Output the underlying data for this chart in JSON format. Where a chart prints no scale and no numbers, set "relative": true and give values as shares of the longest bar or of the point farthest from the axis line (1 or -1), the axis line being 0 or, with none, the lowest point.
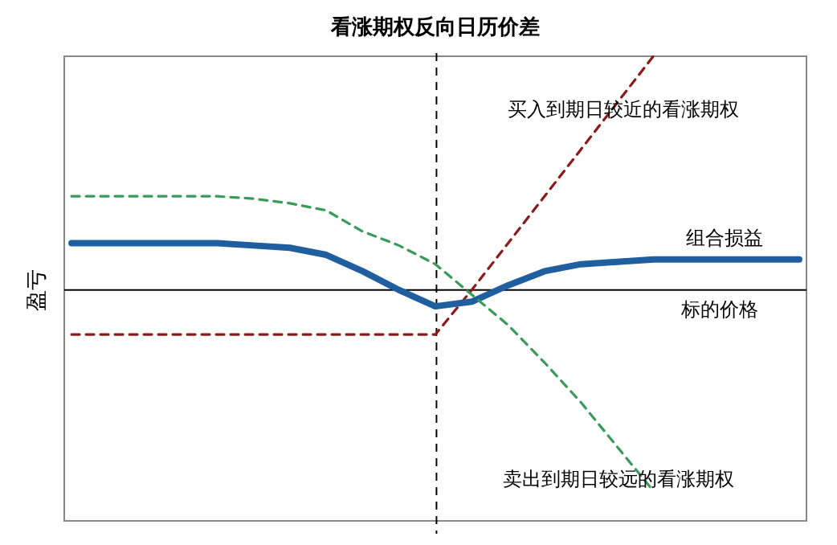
{
  "chart_data": {
    "type": "line",
    "title": "看涨期权反向日历价差",
    "xlabel": "标的价格",
    "ylabel": "盈亏",
    "relative": true,
    "categories": [
      null,
      null,
      null,
      null,
      null,
      null,
      null,
      null,
      null,
      null,
      null,
      null,
      null,
      null,
      null,
      null,
      null,
      null,
      null,
      null,
      null
    ],
    "series": [
      {
        "name": "买入到期日较近的看涨期权",
        "color": "#8b1a1a",
        "line_style": "dashed",
        "values": [
          -0.19,
          -0.19,
          -0.19,
          -0.19,
          -0.19,
          -0.19,
          -0.19,
          -0.19,
          -0.19,
          -0.19,
          -0.19,
          0.0,
          0.2,
          0.4,
          0.6,
          0.8,
          1.0,
          null,
          null,
          null,
          null
        ]
      },
      {
        "name": "组合损益",
        "color": "#1f5fa0",
        "line_style": "solid",
        "values": [
          0.2,
          0.2,
          0.2,
          0.2,
          0.2,
          0.19,
          0.18,
          0.15,
          0.08,
          0.0,
          -0.07,
          -0.05,
          0.02,
          0.08,
          0.11,
          0.12,
          0.13,
          0.13,
          0.13,
          0.13,
          0.13
        ]
      },
      {
        "name": "卖出到期日较远的看涨期权",
        "color": "#3a9a5a",
        "line_style": "dashed",
        "values": [
          0.4,
          0.4,
          0.4,
          0.4,
          0.4,
          0.39,
          0.37,
          0.34,
          0.25,
          0.19,
          0.11,
          -0.02,
          -0.15,
          -0.31,
          -0.48,
          -0.67,
          -0.86,
          null,
          null,
          null,
          null
        ]
      }
    ]
  }
}
